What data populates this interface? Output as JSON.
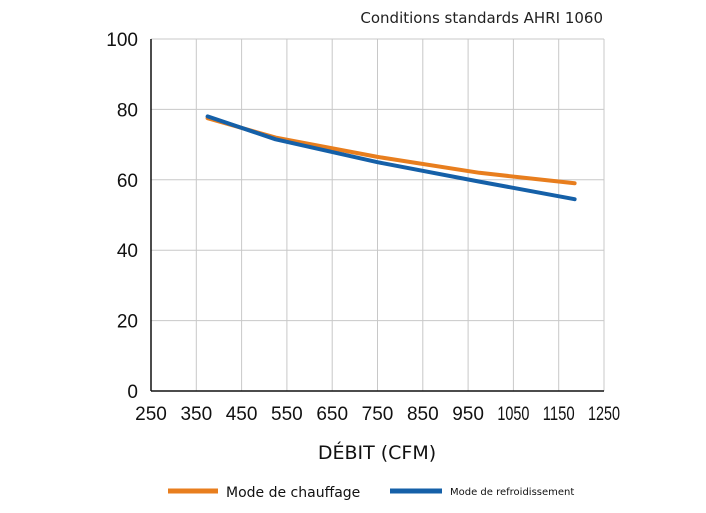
{
  "chart_data": {
    "type": "line",
    "subtitle": "Conditions standards AHRI 1060",
    "xlabel": "DÉBIT (CFM)",
    "ylabel": "",
    "xlim": [
      250,
      1250
    ],
    "ylim": [
      0,
      100
    ],
    "x_ticks": [
      "250",
      "350",
      "450",
      "550",
      "650",
      "750",
      "850",
      "950",
      "1050",
      "1150",
      "1250"
    ],
    "y_ticks": [
      "0",
      "20",
      "40",
      "60",
      "80",
      "100"
    ],
    "grid": true,
    "legend_position": "bottom",
    "series": [
      {
        "name": "Mode de chauffage",
        "color": "#E87E1E",
        "x": [
          375,
          525,
          750,
          975,
          1185
        ],
        "y": [
          77.5,
          72,
          66.5,
          62,
          59
        ]
      },
      {
        "name": "Mode de refroidissement",
        "color": "#1560A8",
        "x": [
          375,
          525,
          750,
          975,
          1185
        ],
        "y": [
          78,
          71.5,
          65,
          59.5,
          54.5
        ]
      }
    ]
  }
}
